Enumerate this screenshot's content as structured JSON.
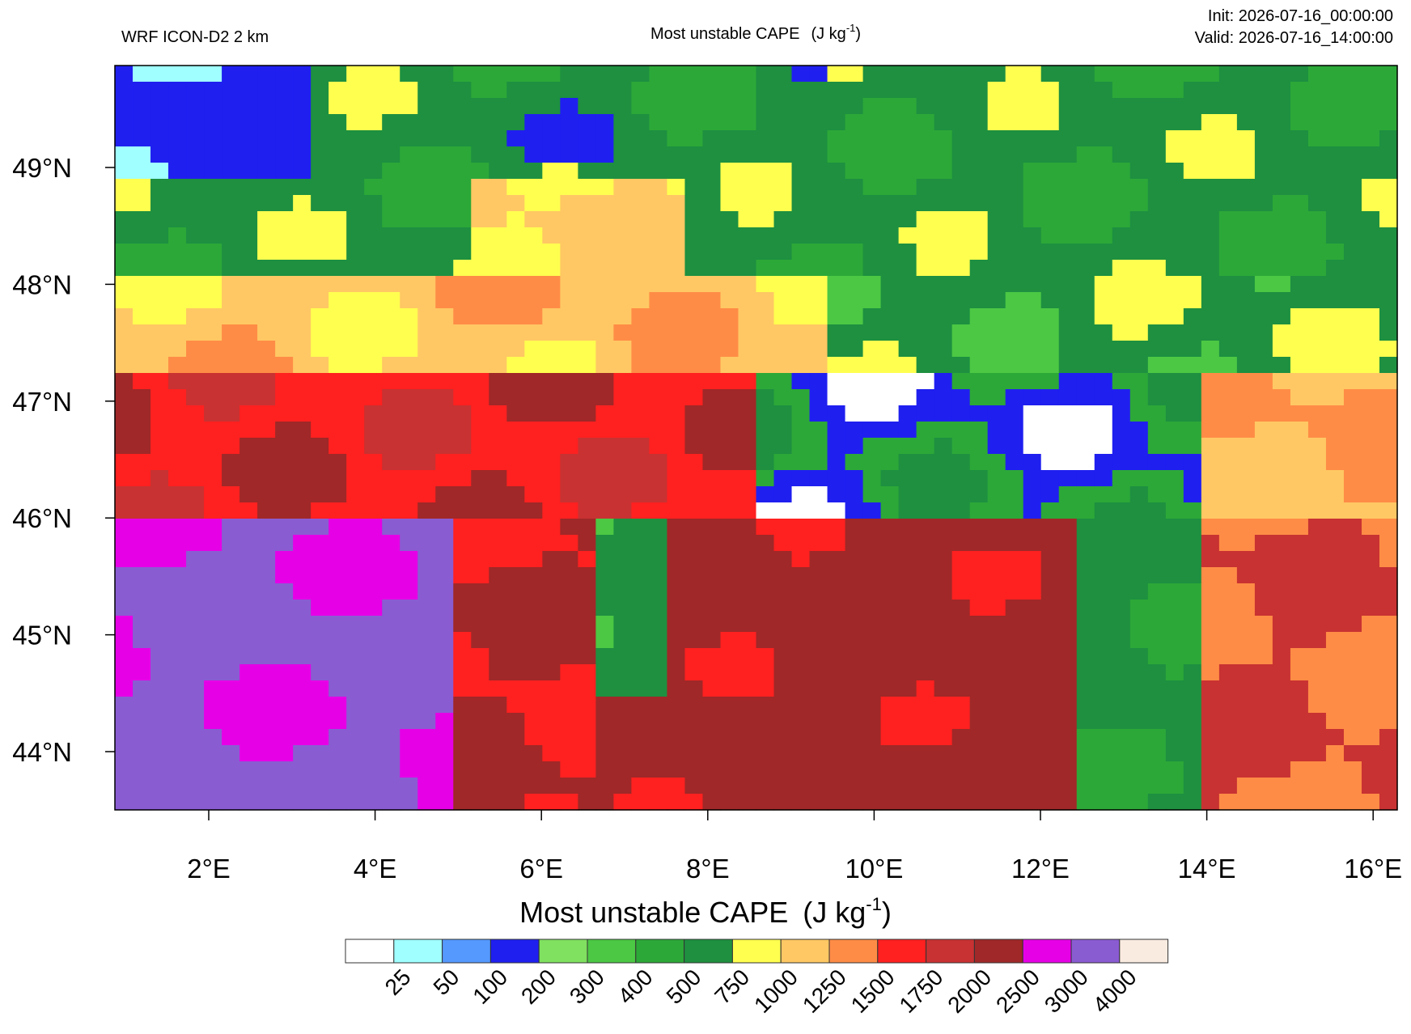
{
  "header": {
    "model": "WRF ICON-D2 2 km",
    "title": "Most unstable CAPE",
    "unit": "(J kg",
    "unit_exp": "-1",
    "unit_close": ")",
    "init": "Init: 2026-07-16_00:00:00",
    "valid": "Valid: 2026-07-16_14:00:00"
  },
  "map": {
    "lon_labels": [
      "2°E",
      "4°E",
      "6°E",
      "8°E",
      "10°E",
      "12°E",
      "14°E",
      "16°E"
    ],
    "lat_labels": [
      "49°N",
      "48°N",
      "47°N",
      "46°N",
      "45°N",
      "44°N"
    ]
  },
  "colorbar": {
    "title": "Most unstable CAPE",
    "unit": "(J kg",
    "unit_exp": "-1",
    "unit_close": ")",
    "colors": [
      "#ffffff",
      "#a0ffff",
      "#5599ff",
      "#1f1ff0",
      "#80e060",
      "#4cc844",
      "#2ca838",
      "#1e9040",
      "#ffff50",
      "#ffc864",
      "#ff8c46",
      "#ff2020",
      "#c83232",
      "#a02828",
      "#e600e6",
      "#8a5cd2",
      "#faebe0"
    ],
    "labels": [
      "25",
      "50",
      "100",
      "200",
      "300",
      "400",
      "500",
      "750",
      "1000",
      "1250",
      "1500",
      "1750",
      "2000",
      "2500",
      "3000",
      "4000"
    ]
  }
}
